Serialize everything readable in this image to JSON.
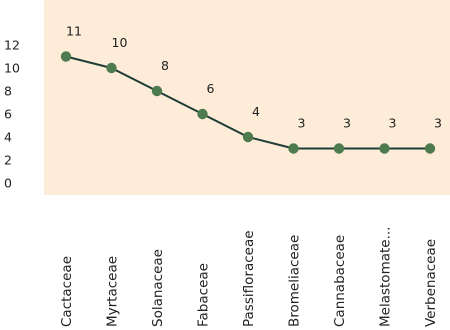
{
  "chart_data": {
    "type": "line",
    "categories": [
      "Cactaceae",
      "Myrtaceae",
      "Solanaceae",
      "Fabaceae",
      "Passifloraceae",
      "Bromeliaceae",
      "Cannabaceae",
      "Melastomate...",
      "Verbenaceae"
    ],
    "values": [
      11,
      10,
      8,
      6,
      4,
      3,
      3,
      3,
      3
    ],
    "data_labels": [
      "11",
      "10",
      "8",
      "6",
      "4",
      "3",
      "3",
      "3",
      "3"
    ],
    "y_ticks": [
      0,
      2,
      4,
      6,
      8,
      10,
      12
    ],
    "ylim": [
      0,
      13
    ],
    "title": "",
    "xlabel": "",
    "ylabel": "",
    "grid": false,
    "legend": "none",
    "colors": {
      "plot_background": "#fcecd8",
      "line": "#1f3d36",
      "marker": "#4e7a4f"
    }
  }
}
